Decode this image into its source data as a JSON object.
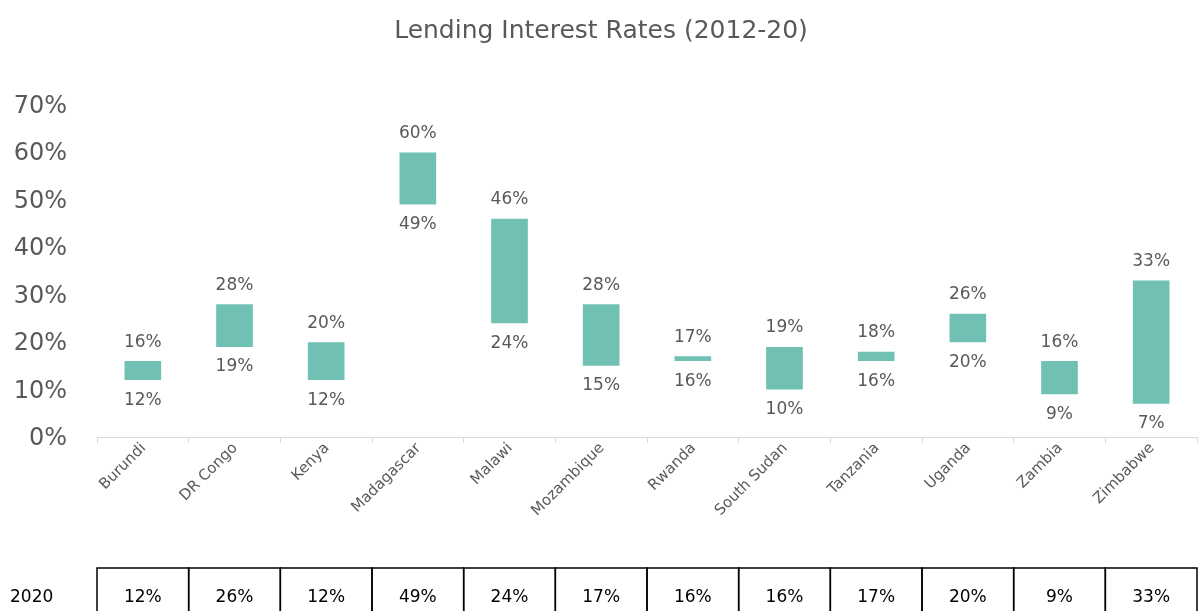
{
  "chart_data": {
    "type": "bar",
    "title": "Lending Interest Rates (2012-20)",
    "categories": [
      "Burundi",
      "DR Congo",
      "Kenya",
      "Madagascar",
      "Malawi",
      "Mozambique",
      "Rwanda",
      "South Sudan",
      "Tanzania",
      "Uganda",
      "Zambia",
      "Zimbabwe"
    ],
    "series": [
      {
        "color": "#70c1b3",
        "base": [
          12,
          19,
          12,
          49,
          24,
          15,
          16,
          10,
          16,
          20,
          9,
          7
        ],
        "values": [
          4,
          9,
          8,
          11,
          22,
          13,
          1,
          9,
          2,
          6,
          7,
          26
        ]
      }
    ],
    "ylim": [
      0,
      70
    ],
    "yticks": [
      {
        "value": 0,
        "label": "0%"
      },
      {
        "value": 10,
        "label": "10%"
      },
      {
        "value": 20,
        "label": "20%"
      },
      {
        "value": 30,
        "label": "30%"
      },
      {
        "value": 40,
        "label": "40%"
      },
      {
        "value": 50,
        "label": "50%"
      },
      {
        "value": 60,
        "label": "60%"
      },
      {
        "value": 70,
        "label": "70%"
      }
    ],
    "grid": false,
    "annotations": [
      {
        "text": "16%",
        "x": "Burundi",
        "y": 16
      },
      {
        "text": "12%",
        "x": "Burundi",
        "y": 12
      },
      {
        "text": "28%",
        "x": "DR Congo",
        "y": 28
      },
      {
        "text": "19%",
        "x": "DR Congo",
        "y": 19
      },
      {
        "text": "20%",
        "x": "Kenya",
        "y": 20
      },
      {
        "text": "12%",
        "x": "Kenya",
        "y": 12
      },
      {
        "text": "60%",
        "x": "Madagascar",
        "y": 60
      },
      {
        "text": "49%",
        "x": "Madagascar",
        "y": 49
      },
      {
        "text": "46%",
        "x": "Malawi",
        "y": 46
      },
      {
        "text": "24%",
        "x": "Malawi",
        "y": 24
      },
      {
        "text": "28%",
        "x": "Mozambique",
        "y": 28
      },
      {
        "text": "15%",
        "x": "Mozambique",
        "y": 15
      },
      {
        "text": "17%",
        "x": "Rwanda",
        "y": 17
      },
      {
        "text": "16%",
        "x": "Rwanda",
        "y": 16
      },
      {
        "text": "19%",
        "x": "South Sudan",
        "y": 19
      },
      {
        "text": "10%",
        "x": "South Sudan",
        "y": 10
      },
      {
        "text": "18%",
        "x": "Tanzania",
        "y": 18
      },
      {
        "text": "16%",
        "x": "Tanzania",
        "y": 16
      },
      {
        "text": "26%",
        "x": "Uganda",
        "y": 26
      },
      {
        "text": "20%",
        "x": "Uganda",
        "y": 20
      },
      {
        "text": "16%",
        "x": "Zambia",
        "y": 16
      },
      {
        "text": "9%",
        "x": "Zambia",
        "y": 9
      },
      {
        "text": "33%",
        "x": "Zimbabwe",
        "y": 33
      },
      {
        "text": "7%",
        "x": "Zimbabwe",
        "y": 7
      },
      "2020",
      "12%",
      "26%",
      "12%",
      "49%",
      "24%",
      "17%",
      "16%",
      "16%",
      "17%",
      "20%",
      "9%",
      "33%"
    ]
  }
}
